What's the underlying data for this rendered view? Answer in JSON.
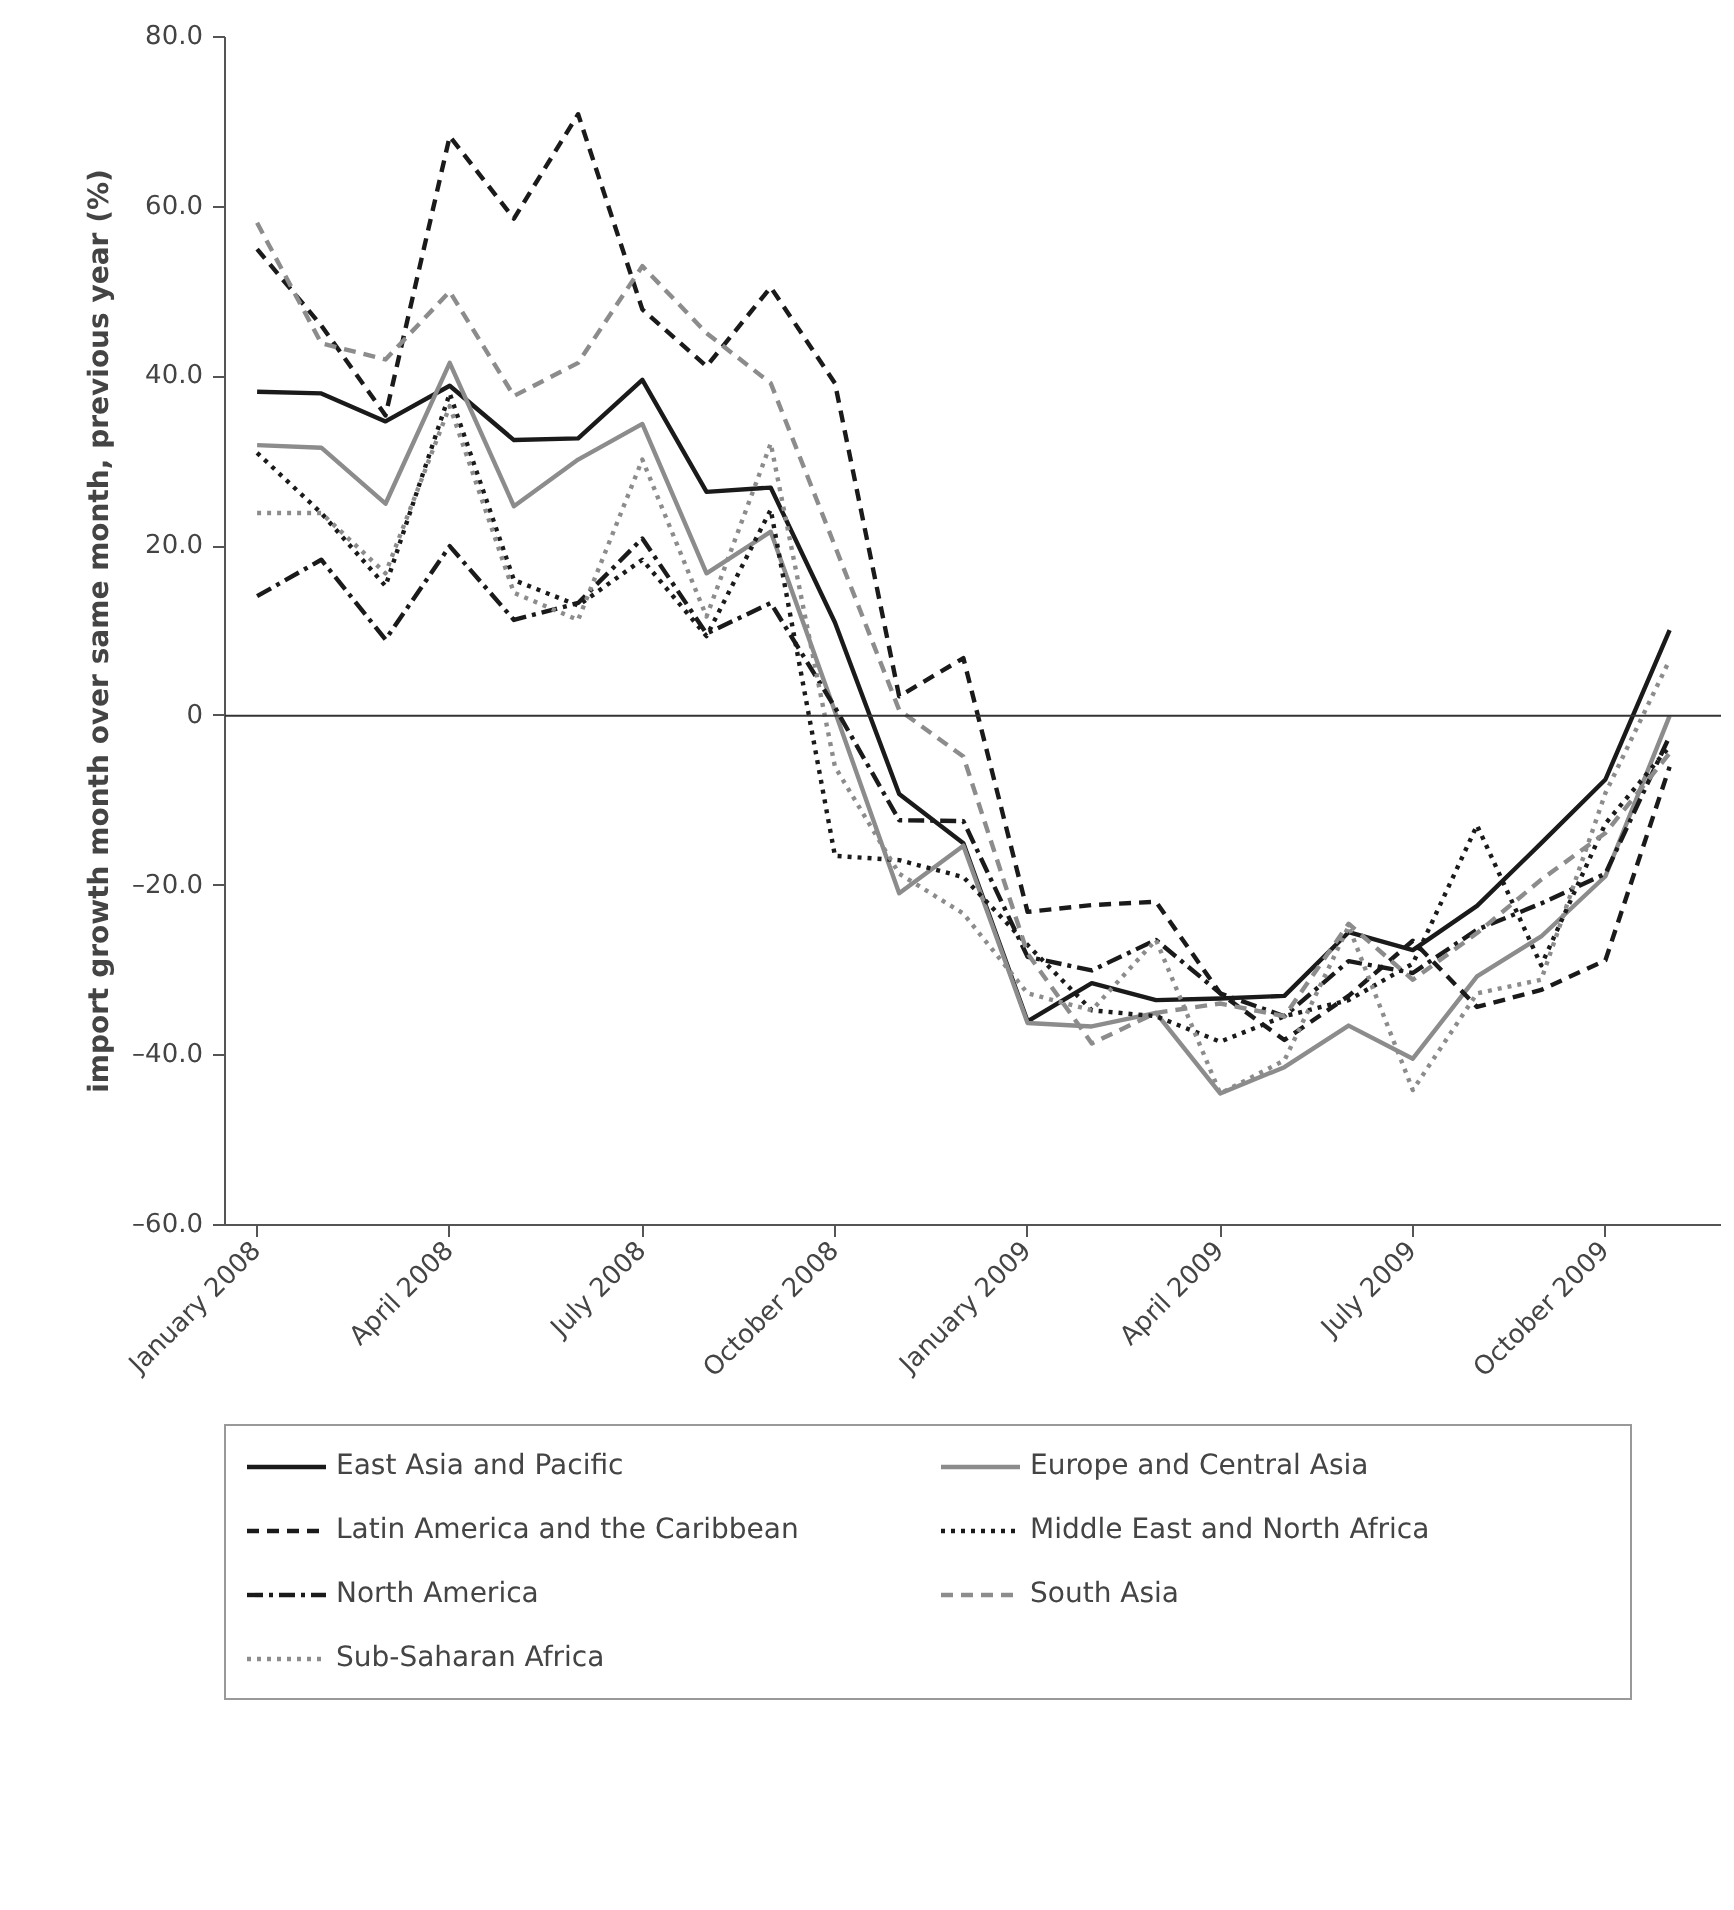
{
  "chart_data": {
    "type": "line",
    "ylabel": "import growth month over same month, previous year (%)",
    "categories": [
      "January 2008",
      null,
      null,
      "April 2008",
      null,
      null,
      "July 2008",
      null,
      null,
      "October 2008",
      null,
      null,
      "January 2009",
      null,
      null,
      "April 2009",
      null,
      null,
      "July 2009",
      null,
      null,
      "October 2009",
      null
    ],
    "ylim": [
      -60,
      80
    ],
    "yticks": [
      {
        "value": -60,
        "label": "–60.0"
      },
      {
        "value": -40,
        "label": "–40.0"
      },
      {
        "value": -20,
        "label": "–20.0"
      },
      0,
      {
        "value": 20,
        "label": "20.0"
      },
      {
        "value": 40,
        "label": "40.0"
      },
      {
        "value": 60,
        "label": "60.0"
      },
      {
        "value": 80,
        "label": "80.0"
      }
    ],
    "grid": false,
    "legend": "bottom",
    "marker": "none",
    "ref_lines": [
      {
        "axis": "y",
        "value": 0,
        "color": "#333333"
      }
    ],
    "series": [
      {
        "name": "East Asia and Pacific",
        "color": "#1a1a1a",
        "line_style": "solid",
        "values": [
          38.2,
          38,
          34.7,
          38.9,
          32.5,
          32.7,
          39.6,
          26.4,
          26.9,
          11,
          -9.2,
          -15,
          -36,
          -31.5,
          -33.5,
          -33.3,
          -33,
          -25.5,
          -27.6,
          -22.4,
          -15,
          -7.5,
          10.1
        ]
      },
      {
        "name": "Europe and Central Asia",
        "color": "#8c8c8c",
        "line_style": "solid",
        "values": [
          31.9,
          31.6,
          25,
          41.6,
          24.7,
          30.2,
          34.4,
          16.8,
          21.7,
          0.5,
          -20.9,
          -15.3,
          -36.2,
          -36.6,
          -35,
          -44.5,
          -41.4,
          -36.5,
          -40.4,
          -30.7,
          -26,
          -18.9,
          0
        ]
      },
      {
        "name": "Latin America and the Caribbean",
        "color": "#1a1a1a",
        "line_style": "dashed",
        "values": [
          55,
          46,
          35.4,
          68.3,
          58.6,
          70.9,
          47.9,
          41.2,
          50.5,
          39.2,
          2.3,
          6.8,
          -23.1,
          -22.3,
          -21.9,
          -32.7,
          -38.2,
          -33,
          -26.5,
          -34.3,
          -32.3,
          -28.8,
          -6
        ]
      },
      {
        "name": "Middle East and North Africa",
        "color": "#1a1a1a",
        "line_style": "dotted",
        "values": [
          31,
          23.9,
          15.3,
          38,
          16,
          13,
          18.4,
          9.4,
          24.3,
          -16.5,
          -17,
          -19,
          -27,
          -34.7,
          -35.4,
          -38.4,
          -35.4,
          -33.5,
          -29.2,
          -12.9,
          -29.4,
          -12.7,
          -3.6
        ]
      },
      {
        "name": "North America",
        "color": "#1a1a1a",
        "line_style": "dashdot",
        "values": [
          14.1,
          18.4,
          9,
          20,
          11.3,
          13.3,
          20.9,
          9.7,
          13.3,
          1,
          -12.3,
          -12.4,
          -28.4,
          -30,
          -26.4,
          -32.7,
          -35.4,
          -28.9,
          -30.3,
          -25.2,
          -22.1,
          -18.6,
          -2.4
        ]
      },
      {
        "name": "South Asia",
        "color": "#8c8c8c",
        "line_style": "dashed",
        "values": [
          58.1,
          43.9,
          42,
          50,
          37.7,
          41.6,
          53,
          45.1,
          39.2,
          20,
          0.7,
          -4.8,
          -28,
          -38.6,
          -35,
          -33.9,
          -35.4,
          -24.5,
          -31.1,
          -25.6,
          -19.3,
          -13.8,
          -4.4
        ]
      },
      {
        "name": "Sub-Saharan Africa",
        "color": "#8c8c8c",
        "line_style": "dotted",
        "values": [
          23.9,
          23.9,
          16.8,
          36.5,
          14.5,
          11.3,
          30.2,
          11.7,
          32.1,
          -6,
          -18.6,
          -23.3,
          -32.7,
          -34.7,
          -26.4,
          -44.5,
          -40.6,
          -24.8,
          -44.1,
          -32.7,
          -31.1,
          -9.1,
          6.6
        ]
      }
    ]
  }
}
